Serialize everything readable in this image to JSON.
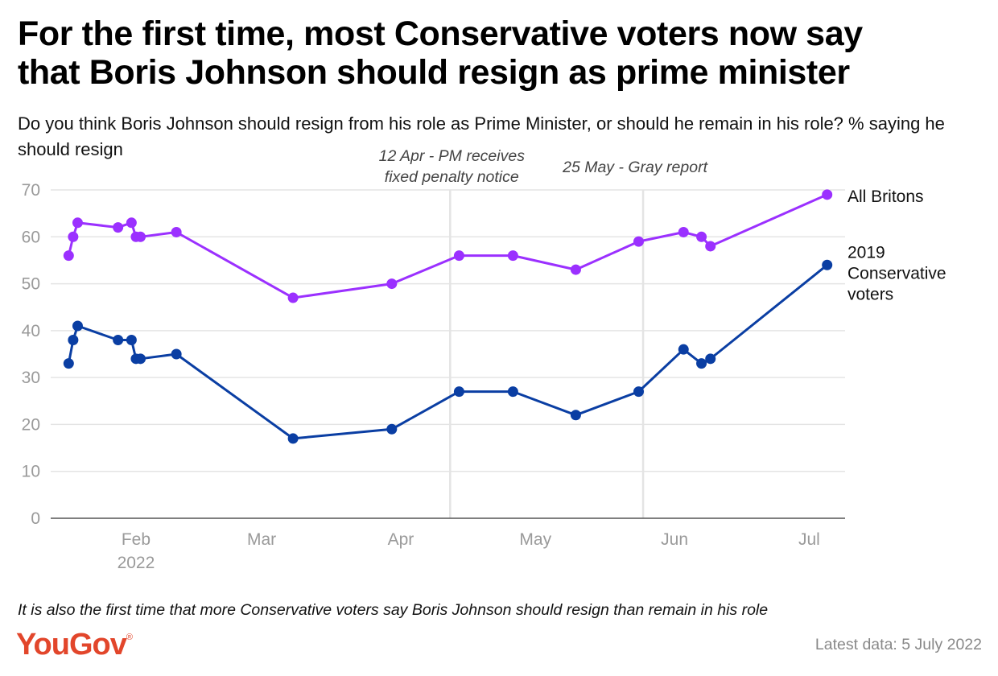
{
  "title_line1": "For the first time, most Conservative voters now say",
  "title_line2": "that Boris Johnson should resign as prime minister",
  "subtitle": "Do you think Boris Johnson should resign from his role as Prime Minister, or should he remain in his role? % saying he should resign",
  "footnote": "It is also the first time that more Conservative voters say Boris Johnson should resign than remain in his role",
  "logo": "YouGov",
  "latest": "Latest data: 5 July 2022",
  "colors": {
    "all_britons": "#9b30ff",
    "conservative": "#0a3ea3",
    "grid": "#e4e4e4",
    "axis": "#555555"
  },
  "chart_data": {
    "type": "line",
    "title": "Do you think Boris Johnson should resign from his role as Prime Minister, or should he remain in his role? % saying he should resign",
    "ylim": [
      0,
      70
    ],
    "yticks": [
      0,
      10,
      20,
      30,
      40,
      50,
      60,
      70
    ],
    "xlim": [
      "2022-01-13",
      "2022-07-09"
    ],
    "xticks": [
      {
        "date": "2022-02-01",
        "label": "Feb",
        "sublabel": "2022"
      },
      {
        "date": "2022-03-01",
        "label": "Mar"
      },
      {
        "date": "2022-04-01",
        "label": "Apr"
      },
      {
        "date": "2022-05-01",
        "label": "May"
      },
      {
        "date": "2022-06-01",
        "label": "Jun"
      },
      {
        "date": "2022-07-01",
        "label": "Jul"
      }
    ],
    "grid": true,
    "annotations": [
      {
        "date": "2022-04-12",
        "lines": [
          "12 Apr - PM receives",
          "fixed penalty notice"
        ]
      },
      {
        "date": "2022-05-25",
        "lines": [
          "25 May - Gray report"
        ]
      }
    ],
    "x": [
      "2022-01-17",
      "2022-01-18",
      "2022-01-19",
      "2022-01-28",
      "2022-01-31",
      "2022-02-01",
      "2022-02-02",
      "2022-02-10",
      "2022-03-08",
      "2022-03-30",
      "2022-04-14",
      "2022-04-26",
      "2022-05-10",
      "2022-05-24",
      "2022-06-03",
      "2022-06-07",
      "2022-06-09",
      "2022-07-05"
    ],
    "series": [
      {
        "name": "All Britons",
        "label_lines": [
          "All Britons"
        ],
        "values": [
          56,
          60,
          63,
          62,
          63,
          60,
          60,
          61,
          47,
          50,
          56,
          56,
          53,
          59,
          61,
          60,
          58,
          69
        ]
      },
      {
        "name": "2019 Conservative voters",
        "label_lines": [
          "2019",
          "Conservative",
          "voters"
        ],
        "values": [
          33,
          38,
          41,
          38,
          38,
          34,
          34,
          35,
          17,
          19,
          27,
          27,
          22,
          27,
          36,
          33,
          34,
          54
        ]
      }
    ]
  }
}
